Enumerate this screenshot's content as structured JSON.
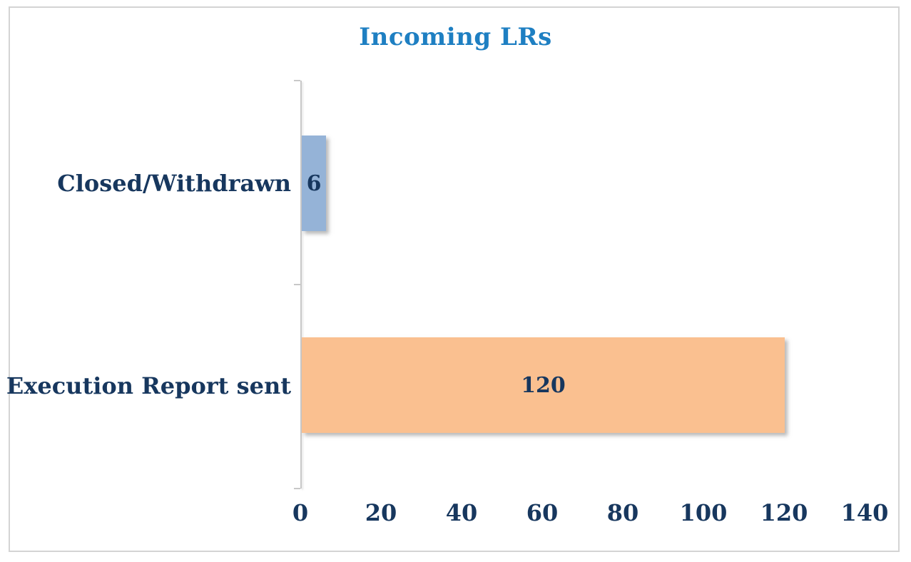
{
  "chart_data": {
    "type": "bar",
    "orientation": "horizontal",
    "title": "Incoming LRs",
    "categories": [
      "Closed/Withdrawn",
      "Execution Report sent"
    ],
    "values": [
      6,
      120
    ],
    "data_labels": [
      "6",
      "120"
    ],
    "bar_colors": [
      "#95B3D7",
      "#FAC090"
    ],
    "xticks": [
      "0",
      "20",
      "40",
      "60",
      "80",
      "100",
      "120",
      "140"
    ],
    "xlim": [
      0,
      140
    ],
    "xlabel": "",
    "ylabel": "",
    "grid": false,
    "legend": "none",
    "title_color": "#1E7FC2",
    "text_color": "#17375E",
    "axis_line_color": "#C8C8C8",
    "frame_border_color": "#D4D4D4"
  }
}
